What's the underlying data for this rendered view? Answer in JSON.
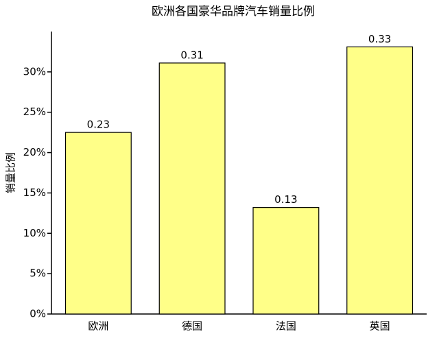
{
  "chart_data": {
    "type": "bar",
    "title": "欧洲各国豪华品牌汽车销量比例",
    "ylabel": "销量比例",
    "categories": [
      "欧洲",
      "德国",
      "法国",
      "英国"
    ],
    "values": [
      22.5,
      31.1,
      13.2,
      33.1
    ],
    "value_labels": [
      "0.23",
      "0.31",
      "0.13",
      "0.33"
    ],
    "color": "#ffff88",
    "ylim": [
      0,
      35
    ],
    "yticks": [
      {
        "value": 0,
        "label": "0%"
      },
      {
        "value": 5,
        "label": "5%"
      },
      {
        "value": 10,
        "label": "10%"
      },
      {
        "value": 15,
        "label": "15%"
      },
      {
        "value": 20,
        "label": "20%"
      },
      {
        "value": 25,
        "label": "25%"
      },
      {
        "value": 30,
        "label": "30%"
      }
    ],
    "grid": false
  }
}
